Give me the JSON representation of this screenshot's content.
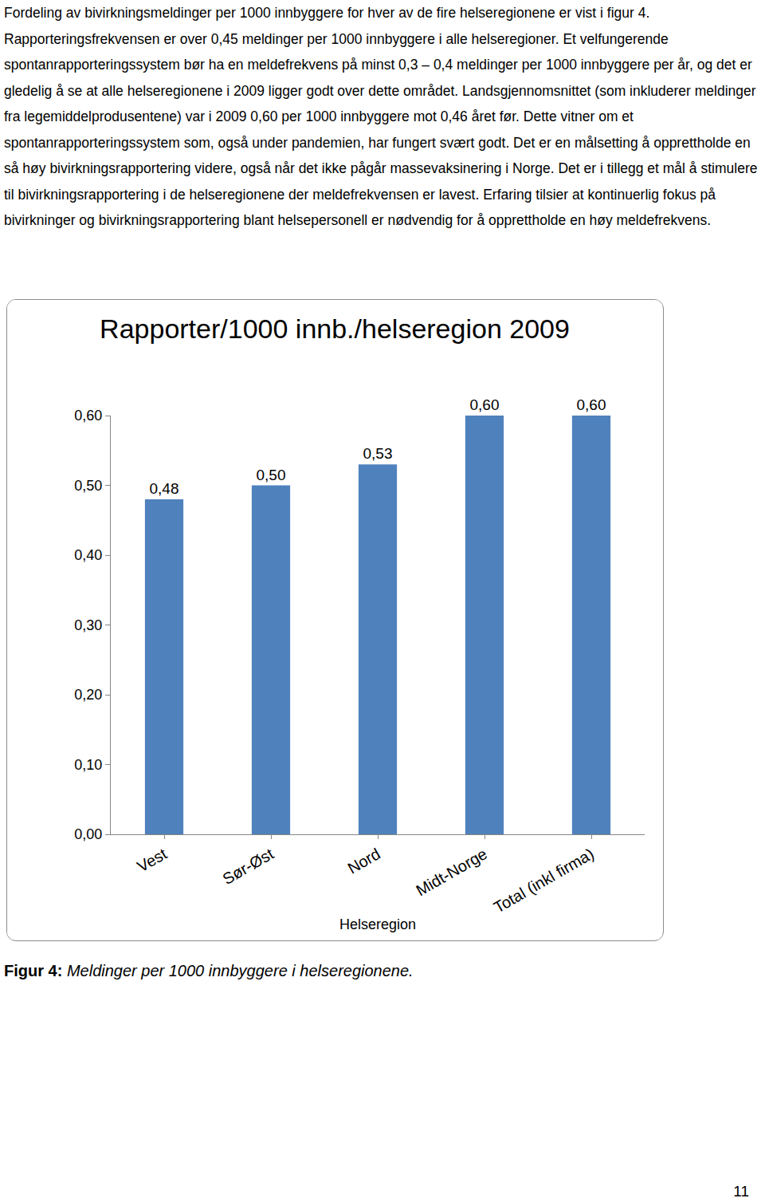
{
  "paragraph": "Fordeling av bivirkningsmeldinger per 1000 innbyggere for hver av de fire helseregionene er vist i figur 4. Rapporteringsfrekvensen er over 0,45 meldinger per 1000 innbyggere i alle helseregioner. Et velfungerende spontanrapporteringssystem bør ha en meldefrekvens på minst 0,3 – 0,4 meldinger per 1000 innbyggere per år, og det er gledelig å se at alle helseregionene i 2009 ligger godt over dette området. Landsgjennomsnittet (som inkluderer meldinger fra legemiddelprodusentene) var i 2009 0,60 per 1000 innbyggere mot 0,46 året før. Dette vitner om et spontanrapporteringssystem som, også under pandemien, har fungert svært godt. Det er en målsetting å opprettholde en så høy bivirkningsrapportering videre, også når det ikke pågår massevaksinering i Norge. Det er i tillegg et mål å stimulere til bivirkningsrapportering i de helseregionene der meldefrekvensen er lavest. Erfaring tilsier at kontinuerlig fokus på bivirkninger og bivirkningsrapportering blant helsepersonell er nødvendig for å opprettholde en høy meldefrekvens.",
  "chart_data": {
    "type": "bar",
    "title": "Rapporter/1000 innb./helseregion 2009",
    "x_label": "Helseregion",
    "categories": [
      "Vest",
      "Sør-Øst",
      "Nord",
      "Midt-Norge",
      "Total (inkl firma)"
    ],
    "values": [
      0.48,
      0.5,
      0.53,
      0.6,
      0.6
    ],
    "value_labels": [
      "0,48",
      "0,50",
      "0,53",
      "0,60",
      "0,60"
    ],
    "color": "#4f81bd",
    "ylim": [
      0,
      0.6
    ],
    "yticks": [
      {
        "value": 0,
        "label": "0,00"
      },
      {
        "value": 0.1,
        "label": "0,10"
      },
      {
        "value": 0.2,
        "label": "0,20"
      },
      {
        "value": 0.3,
        "label": "0,30"
      },
      {
        "value": 0.4,
        "label": "0,40"
      },
      {
        "value": 0.5,
        "label": "0,50"
      },
      {
        "value": 0.6,
        "label": "0,60"
      }
    ],
    "grid": false,
    "data_labels": true
  },
  "caption": {
    "label": "Figur 4:",
    "text": "Meldinger per 1000 innbyggere i helseregionene."
  },
  "page_number": "11"
}
